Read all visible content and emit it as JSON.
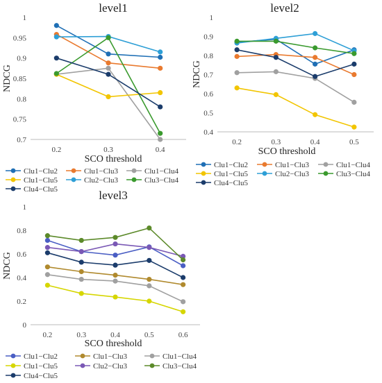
{
  "chart_data": [
    {
      "type": "line",
      "title": "level1",
      "xlabel": "SCO threshold",
      "ylabel": "NDCG",
      "x": [
        "0.2",
        "0.3",
        "0.4"
      ],
      "ylim": [
        0.7,
        1
      ],
      "yticks": [
        "0.7",
        "0.75",
        "0.8",
        "0.85",
        "0.9",
        "0.95",
        "1"
      ],
      "grid": false,
      "legend": "bottom",
      "series": [
        {
          "name": "Clu1−Clu2",
          "color": "#1f6fb5",
          "values": [
            0.98,
            0.91,
            0.902
          ]
        },
        {
          "name": "Clu1−Clu3",
          "color": "#e97a2f",
          "values": [
            0.958,
            0.888,
            0.875
          ]
        },
        {
          "name": "Clu1−Clu4",
          "color": "#a0a0a0",
          "values": [
            0.86,
            0.875,
            0.7
          ]
        },
        {
          "name": "Clu1−Clu5",
          "color": "#f2c500",
          "values": [
            0.86,
            0.805,
            0.815
          ]
        },
        {
          "name": "Clu2−Clu3",
          "color": "#2e9fd6",
          "values": [
            0.952,
            0.953,
            0.915
          ]
        },
        {
          "name": "Clu3−Clu4",
          "color": "#3a9a2e",
          "values": [
            0.862,
            0.95,
            0.715
          ]
        },
        {
          "name": "Clu4−Clu5",
          "color": "#1b3c6b",
          "values": [
            0.9,
            0.86,
            0.78
          ]
        }
      ]
    },
    {
      "type": "line",
      "title": "level2",
      "xlabel": "SCO threshold",
      "ylabel": "NDCG",
      "x": [
        "0.2",
        "0.3",
        "0.4",
        "0.5"
      ],
      "ylim": [
        0.4,
        1
      ],
      "yticks": [
        "0.4",
        "0.5",
        "0.6",
        "0.7",
        "0.8",
        "0.9",
        "1"
      ],
      "grid": false,
      "legend": "bottom",
      "series": [
        {
          "name": "Clu1−Clu2",
          "color": "#1f6fb5",
          "values": [
            0.87,
            0.885,
            0.755,
            0.83
          ]
        },
        {
          "name": "Clu1−Clu3",
          "color": "#e97a2f",
          "values": [
            0.795,
            0.805,
            0.79,
            0.7
          ]
        },
        {
          "name": "Clu1−Clu4",
          "color": "#a0a0a0",
          "values": [
            0.71,
            0.715,
            0.68,
            0.555
          ]
        },
        {
          "name": "Clu1−Clu5",
          "color": "#f2c500",
          "values": [
            0.63,
            0.595,
            0.49,
            0.425
          ]
        },
        {
          "name": "Clu2−Clu3",
          "color": "#2e9fd6",
          "values": [
            0.865,
            0.89,
            0.915,
            0.825
          ]
        },
        {
          "name": "Clu3−Clu4",
          "color": "#3a9a2e",
          "values": [
            0.875,
            0.875,
            0.84,
            0.81
          ]
        },
        {
          "name": "Clu4−Clu5",
          "color": "#1b3c6b",
          "values": [
            0.83,
            0.79,
            0.69,
            0.755
          ]
        }
      ]
    },
    {
      "type": "line",
      "title": "level3",
      "xlabel": "SCO threshold",
      "ylabel": "NDCG",
      "x": [
        "0.2",
        "0.3",
        "0.4",
        "0.5",
        "0.6"
      ],
      "ylim": [
        0,
        1
      ],
      "yticks": [
        "0",
        "0.2",
        "0.4",
        "0.6",
        "0.8",
        "1"
      ],
      "grid": false,
      "legend": "bottom",
      "series": [
        {
          "name": "Clu1−Clu2",
          "color": "#4a5ec4",
          "values": [
            0.715,
            0.62,
            0.59,
            0.66,
            0.5
          ]
        },
        {
          "name": "Clu1−Clu3",
          "color": "#b08a2e",
          "values": [
            0.49,
            0.45,
            0.42,
            0.385,
            0.34
          ]
        },
        {
          "name": "Clu1−Clu4",
          "color": "#a0a0a0",
          "values": [
            0.425,
            0.385,
            0.37,
            0.33,
            0.195
          ]
        },
        {
          "name": "Clu1−Clu5",
          "color": "#d6d600",
          "values": [
            0.335,
            0.265,
            0.235,
            0.2,
            0.11
          ]
        },
        {
          "name": "Clu2−Clu3",
          "color": "#7a58b5",
          "values": [
            0.655,
            0.62,
            0.685,
            0.655,
            0.58
          ]
        },
        {
          "name": "Clu3−Clu4",
          "color": "#5c8a2a",
          "values": [
            0.755,
            0.715,
            0.74,
            0.82,
            0.55
          ]
        },
        {
          "name": "Clu4−Clu5",
          "color": "#1b3c6b",
          "values": [
            0.61,
            0.53,
            0.505,
            0.545,
            0.4
          ]
        }
      ]
    }
  ]
}
